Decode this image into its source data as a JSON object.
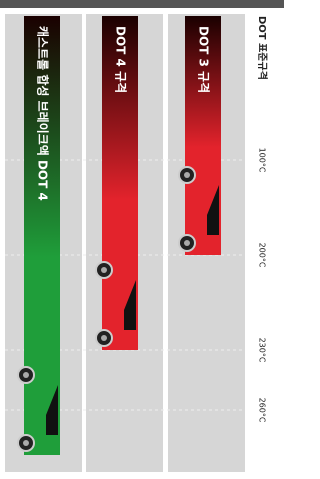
{
  "chart_data": {
    "type": "bar",
    "title": "DOT 표준규격",
    "categories": [
      "DOT 3 규격",
      "DOT 4 규격",
      "캐스트롤 합성 브레이크액 DOT 4"
    ],
    "values": [
      200,
      230,
      275
    ],
    "colors": [
      "#e3232c",
      "#e3232c",
      "#1f9e3a"
    ],
    "ylim": [
      0,
      280
    ],
    "yticks": [
      {
        "value": 100,
        "label": "100°C"
      },
      {
        "value": 200,
        "label": "200°C"
      },
      {
        "value": 230,
        "label": "230°C"
      },
      {
        "value": 260,
        "label": "260°C"
      }
    ],
    "grid": true
  }
}
